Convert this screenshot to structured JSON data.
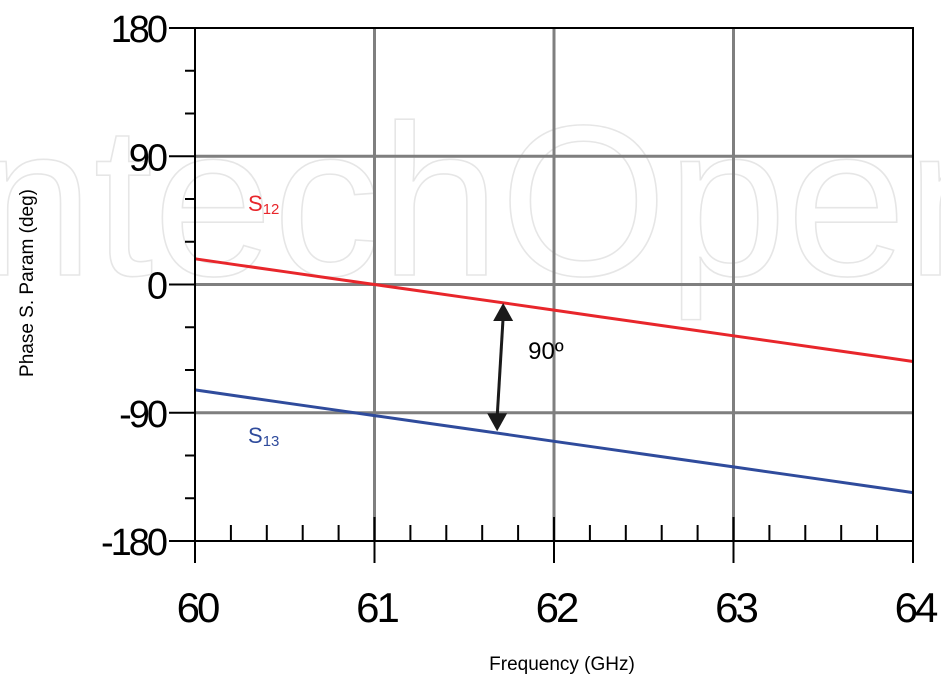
{
  "chart_data": {
    "type": "line",
    "title": "",
    "xlabel": "Frequency (GHz)",
    "ylabel": "Phase S. Param (deg)",
    "xlim": [
      60,
      64
    ],
    "ylim": [
      -180,
      180
    ],
    "x_ticks": [
      "60",
      "61",
      "62",
      "63",
      "64"
    ],
    "y_ticks": [
      "180",
      "90",
      "0",
      "-90",
      "-180"
    ],
    "grid": true,
    "series": [
      {
        "name": "S12",
        "label_main": "S",
        "label_sub": "12",
        "color": "#e8262b",
        "x": [
          60.0,
          60.25,
          60.5,
          60.75,
          61.0,
          61.25,
          61.5,
          61.75,
          62.0,
          62.25,
          62.5,
          62.75,
          63.0,
          63.25,
          63.5,
          63.75,
          64.0
        ],
        "y": [
          18,
          13.5,
          9,
          4.5,
          0,
          -4.5,
          -9,
          -13.5,
          -18,
          -22.5,
          -27,
          -31.5,
          -36,
          -40.5,
          -45,
          -49.5,
          -54
        ]
      },
      {
        "name": "S13",
        "label_main": "S",
        "label_sub": "13",
        "color": "#2f4b9c",
        "x": [
          60.0,
          60.25,
          60.5,
          60.75,
          61.0,
          61.25,
          61.5,
          61.75,
          62.0,
          62.25,
          62.5,
          62.75,
          63.0,
          63.25,
          63.5,
          63.75,
          64.0
        ],
        "y": [
          -74,
          -78.5,
          -83,
          -87.5,
          -92,
          -96.5,
          -101,
          -105.5,
          -110,
          -114.5,
          -119,
          -123.5,
          -128,
          -132.5,
          -137,
          -141.5,
          -146
        ]
      }
    ],
    "annotation": {
      "text": "90º",
      "arrow_x": 61.7,
      "arrow_from": -13,
      "arrow_to": -103
    },
    "watermark": "IntechOpen"
  }
}
